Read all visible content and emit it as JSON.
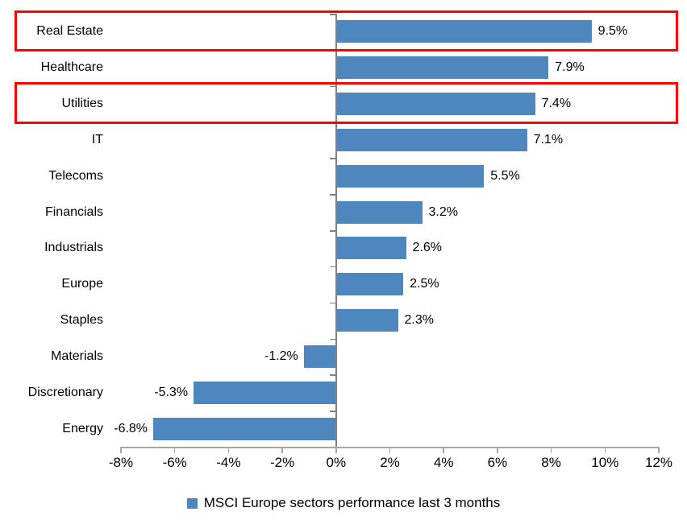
{
  "chart_data": {
    "type": "bar",
    "orientation": "horizontal",
    "title": "",
    "categories": [
      "Real Estate",
      "Healthcare",
      "Utilities",
      "IT",
      "Telecoms",
      "Financials",
      "Industrials",
      "Europe",
      "Staples",
      "Materials",
      "Discretionary",
      "Energy"
    ],
    "values": [
      9.5,
      7.9,
      7.4,
      7.1,
      5.5,
      3.2,
      2.6,
      2.5,
      2.3,
      -1.2,
      -5.3,
      -6.8
    ],
    "data_labels": [
      "9.5%",
      "7.9%",
      "7.4%",
      "7.1%",
      "5.5%",
      "3.2%",
      "2.6%",
      "2.5%",
      "2.3%",
      "-1.2%",
      "-5.3%",
      "-6.8%"
    ],
    "xlim": [
      -8,
      12
    ],
    "x_ticks": [
      {
        "v": -8,
        "label": "-8%"
      },
      {
        "v": -6,
        "label": "-6%"
      },
      {
        "v": -4,
        "label": "-4%"
      },
      {
        "v": -2,
        "label": "-2%"
      },
      {
        "v": 0,
        "label": "0%"
      },
      {
        "v": 2,
        "label": "2%"
      },
      {
        "v": 4,
        "label": "4%"
      },
      {
        "v": 6,
        "label": "6%"
      },
      {
        "v": 8,
        "label": "8%"
      },
      {
        "v": 10,
        "label": "10%"
      },
      {
        "v": 12,
        "label": "12%"
      }
    ],
    "legend": "MSCI Europe sectors performance last 3 months",
    "legend_position": "bottom-center",
    "grid": "off",
    "highlighted_categories": [
      "Real Estate",
      "Utilities"
    ],
    "colors": {
      "bar": "#4e86be",
      "value_axis": "#808080",
      "tick_axis": "#a6a6a6",
      "highlight": "#ff0000",
      "text": "#000000",
      "background": "#ffffff"
    }
  }
}
